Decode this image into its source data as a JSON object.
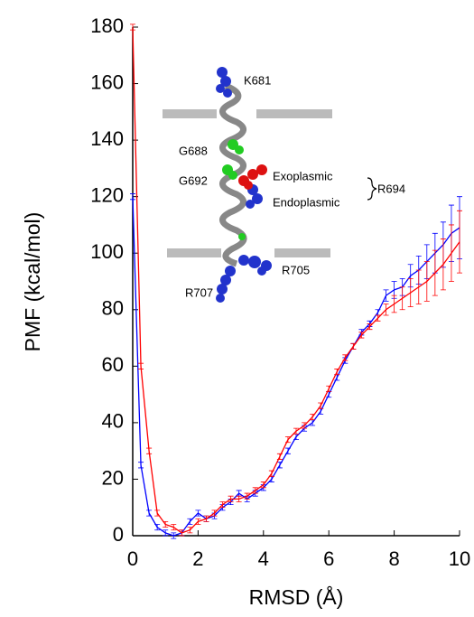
{
  "chart_data": {
    "type": "line",
    "x_label": "RMSD (Å)",
    "y_label": "PMF (kcal/mol)",
    "x": [
      0,
      0.25,
      0.5,
      0.75,
      1,
      1.25,
      1.5,
      1.75,
      2,
      2.25,
      2.5,
      2.75,
      3,
      3.25,
      3.5,
      3.75,
      4,
      4.25,
      4.5,
      4.75,
      5,
      5.25,
      5.5,
      5.75,
      6,
      6.25,
      6.5,
      6.75,
      7,
      7.25,
      7.5,
      7.75,
      8,
      8.25,
      8.5,
      8.75,
      9,
      9.25,
      9.5,
      9.75,
      10
    ],
    "series": [
      {
        "color": "#0000ff",
        "values": [
          120,
          25,
          8,
          3,
          1,
          0,
          1,
          5,
          8,
          6,
          7,
          10,
          12,
          15,
          13,
          15,
          17,
          20,
          25,
          30,
          35,
          38,
          40,
          44,
          50,
          56,
          62,
          67,
          72,
          75,
          79,
          85,
          87,
          88,
          92,
          94,
          97,
          100,
          103,
          107,
          109
        ],
        "errors": [
          1,
          1,
          1,
          1,
          1,
          1,
          1,
          1,
          1,
          1,
          1,
          1,
          1,
          1,
          1,
          1,
          1,
          1,
          1,
          1,
          1,
          1,
          1,
          1,
          1,
          1,
          1,
          1,
          1,
          1,
          1,
          2,
          3,
          3,
          4,
          5,
          6,
          7,
          8,
          10,
          11
        ]
      },
      {
        "color": "#ff0000",
        "values": [
          180,
          60,
          30,
          8,
          4,
          3,
          1,
          2,
          5,
          6,
          8,
          11,
          13,
          13,
          14,
          16,
          18,
          22,
          28,
          34,
          37,
          39,
          42,
          46,
          52,
          58,
          63,
          67,
          71,
          74,
          77,
          80,
          82,
          84,
          86,
          88,
          90,
          93,
          96,
          100,
          104
        ],
        "errors": [
          1,
          1,
          1,
          1,
          1,
          1,
          1,
          1,
          1,
          1,
          1,
          1,
          1,
          1,
          1,
          1,
          1,
          1,
          1,
          1,
          1,
          1,
          1,
          1,
          1,
          1,
          1,
          1,
          1,
          1,
          1,
          2,
          3,
          4,
          5,
          6,
          7,
          8,
          9,
          10,
          11
        ]
      }
    ],
    "xlim": [
      0,
      10
    ],
    "xticks": [
      0,
      2,
      4,
      6,
      8,
      10
    ],
    "ylim": [
      0,
      180
    ],
    "yticks": [
      0,
      20,
      40,
      60,
      80,
      100,
      120,
      140,
      160,
      180
    ],
    "annotations": [
      "K681",
      "G688",
      "G692",
      "Exoplasmic",
      "Endoplasmic",
      "R694",
      "R705",
      "R707"
    ]
  }
}
